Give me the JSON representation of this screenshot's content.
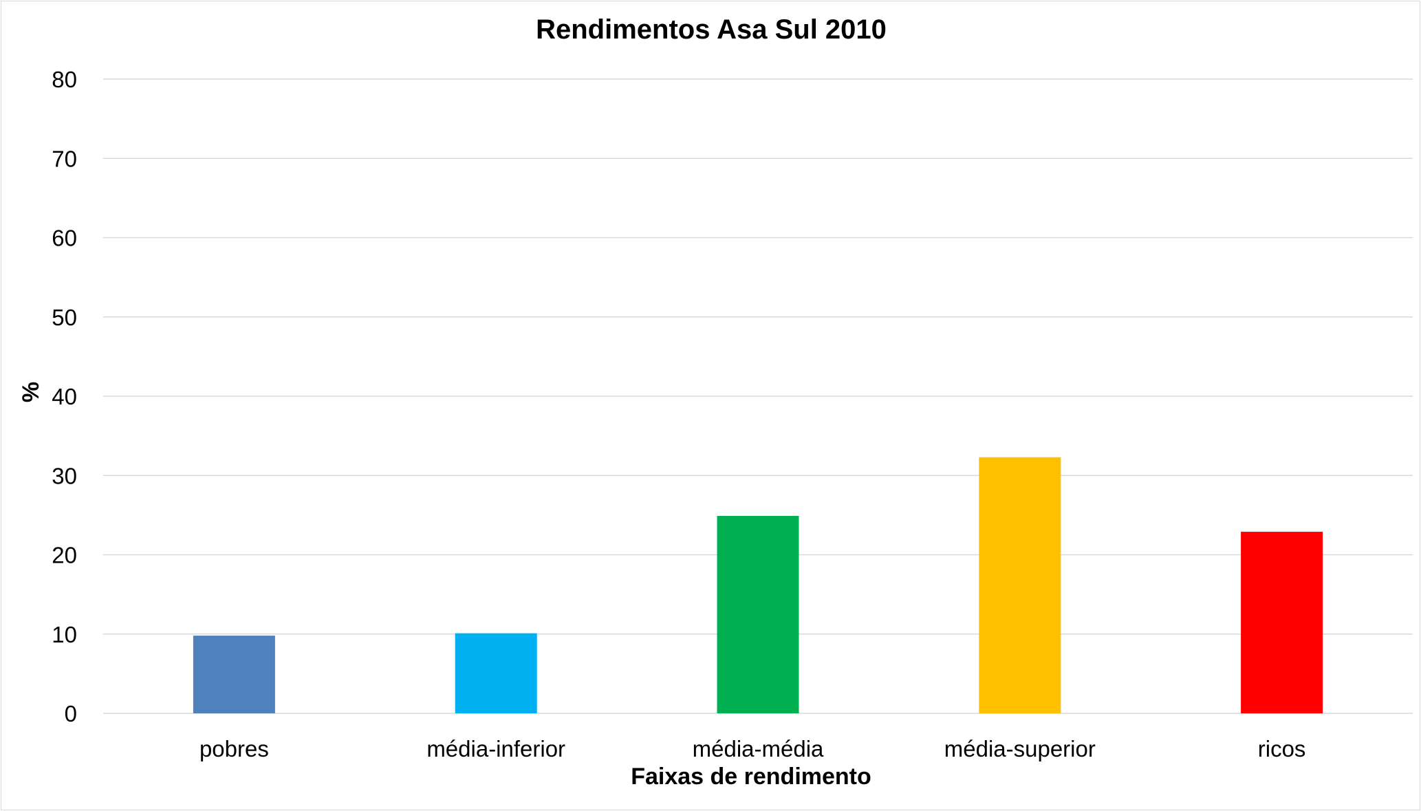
{
  "chart_data": {
    "type": "bar",
    "title": "Rendimentos Asa Sul 2010",
    "xlabel": "Faixas de rendimento",
    "ylabel": "%",
    "categories": [
      "pobres",
      "média-inferior",
      "média-média",
      "média-superior",
      "ricos"
    ],
    "values": [
      9.8,
      10.1,
      24.9,
      32.3,
      22.9
    ],
    "colors": [
      "#4f81bd",
      "#00b0f0",
      "#00b050",
      "#ffc000",
      "#ff0000"
    ],
    "ylim": [
      0,
      80
    ],
    "yticks": [
      0,
      10,
      20,
      30,
      40,
      50,
      60,
      70,
      80
    ],
    "grid": true,
    "legend": "none"
  }
}
